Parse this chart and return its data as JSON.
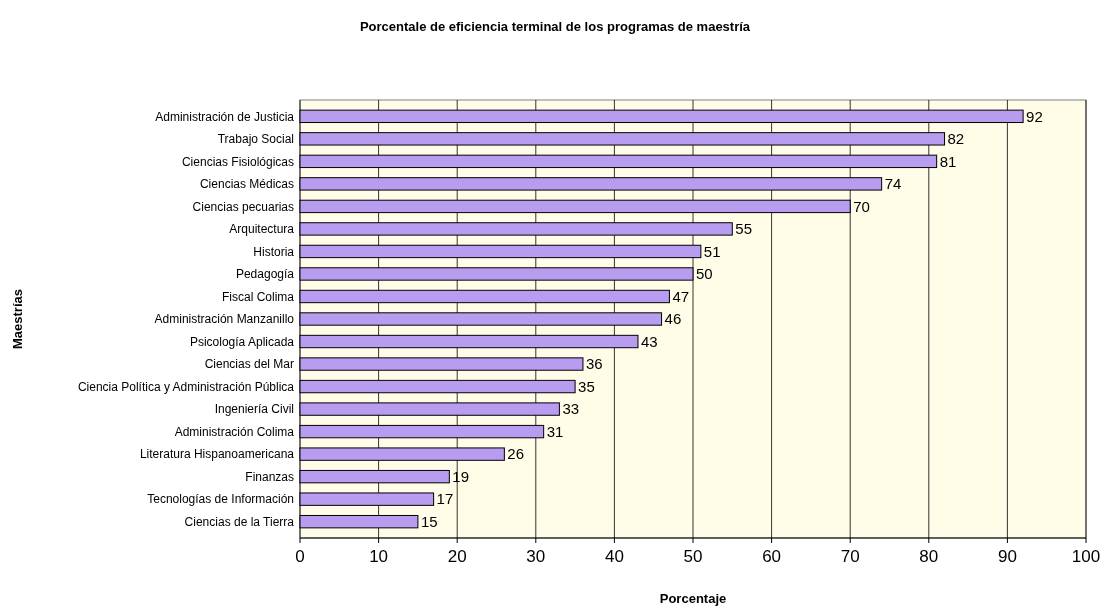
{
  "chart_data": {
    "type": "bar",
    "orientation": "horizontal",
    "title": "Porcentale de eficiencia terminal de los programas de maestría",
    "xlabel": "Porcentaje",
    "ylabel": "Maestrías",
    "categories": [
      "Administración de Justicia",
      "Trabajo Social",
      "Ciencias Fisiológicas",
      "Ciencias Médicas",
      "Ciencias pecuarias",
      "Arquitectura",
      "Historia",
      "Pedagogía",
      "Fiscal Colima",
      "Administración Manzanillo",
      "Psicología Aplicada",
      "Ciencias del Mar",
      "Ciencia Política y Administración Pública",
      "Ingeniería Civil",
      "Administración Colima",
      "Literatura Hispanoamericana",
      "Finanzas",
      "Tecnologías de Información",
      "Ciencias de la Tierra"
    ],
    "values": [
      92,
      82,
      81,
      74,
      70,
      55,
      51,
      50,
      47,
      46,
      43,
      36,
      35,
      33,
      31,
      26,
      19,
      17,
      15
    ],
    "color": "#b79cf0",
    "xlim": [
      0,
      100
    ],
    "xticks": [
      0,
      10,
      20,
      30,
      40,
      50,
      60,
      70,
      80,
      90,
      100
    ],
    "grid": "x",
    "data_labels": true
  }
}
